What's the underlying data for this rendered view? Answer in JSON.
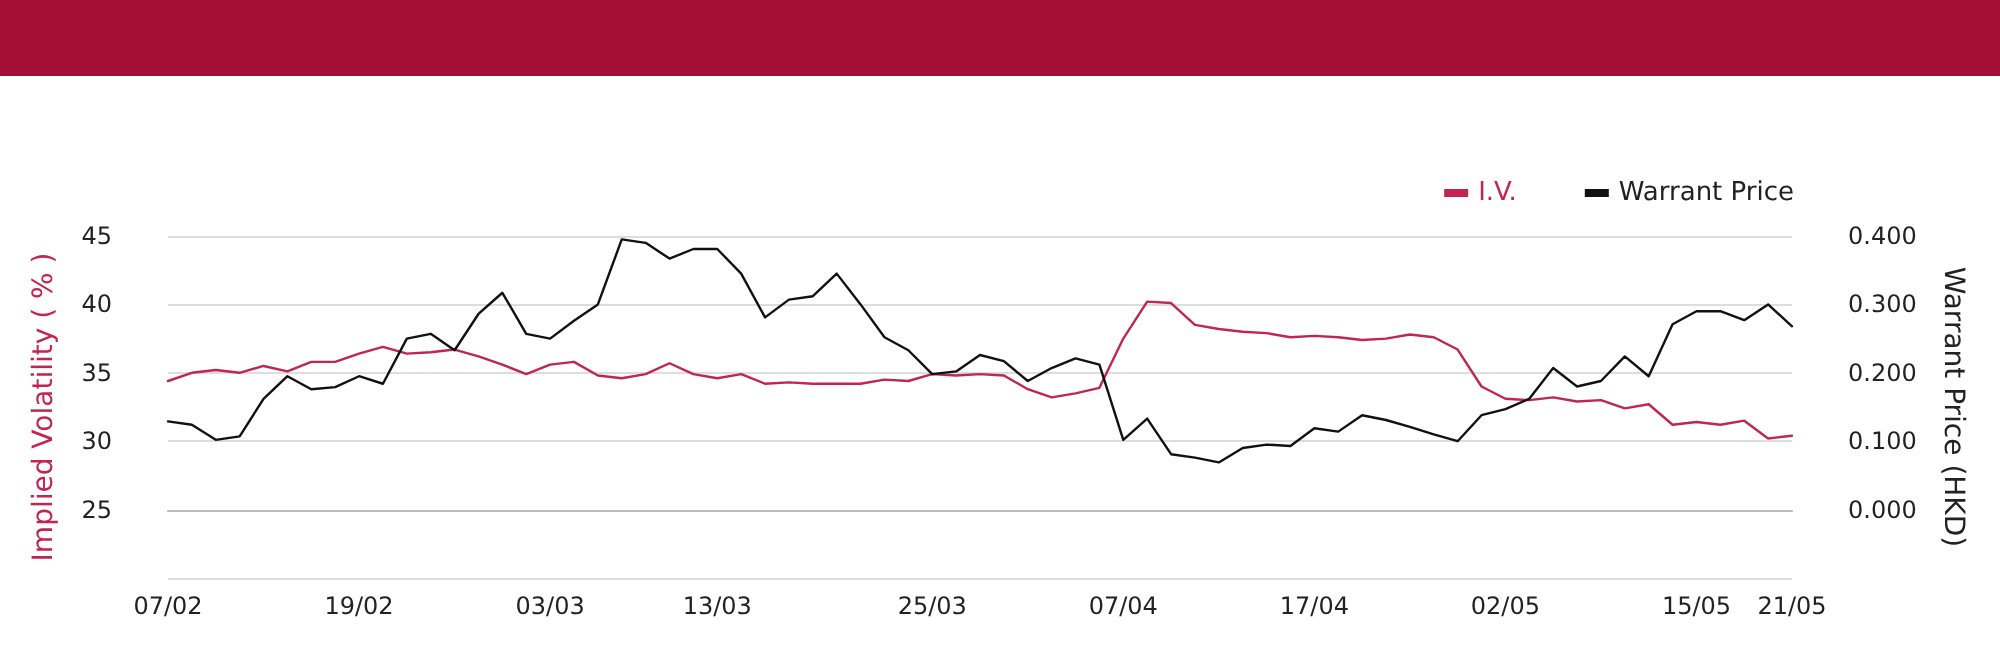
{
  "chart_data": {
    "type": "line",
    "ylabel": "Implied Volatility ( % )",
    "y2label": "Warrant Price (HKD)",
    "categories": [
      "07/02",
      null,
      null,
      null,
      null,
      null,
      null,
      null,
      "19/02",
      null,
      null,
      null,
      null,
      null,
      null,
      null,
      "03/03",
      null,
      null,
      null,
      null,
      null,
      null,
      "13/03",
      null,
      null,
      null,
      null,
      null,
      null,
      null,
      null,
      "25/03",
      null,
      null,
      null,
      null,
      null,
      null,
      null,
      "07/04",
      null,
      null,
      null,
      null,
      null,
      null,
      null,
      "17/04",
      null,
      null,
      null,
      null,
      null,
      null,
      null,
      "02/05",
      null,
      null,
      null,
      null,
      null,
      null,
      null,
      "15/05",
      null,
      null,
      null,
      "21/05"
    ],
    "series": [
      {
        "name": "I.V.",
        "color": "#c0264f",
        "values": [
          34.4,
          35.0,
          35.2,
          35.0,
          35.5,
          35.1,
          35.8,
          35.8,
          36.4,
          36.9,
          36.4,
          36.5,
          36.7,
          36.2,
          35.6,
          34.9,
          35.6,
          35.8,
          34.8,
          34.6,
          34.9,
          35.7,
          34.9,
          34.6,
          34.9,
          34.2,
          34.3,
          34.2,
          34.2,
          34.2,
          34.5,
          34.4,
          34.9,
          34.8,
          34.9,
          34.8,
          33.8,
          33.2,
          33.5,
          33.9,
          37.5,
          40.2,
          40.1,
          38.5,
          38.2,
          38.0,
          37.9,
          37.6,
          37.7,
          37.6,
          37.4,
          37.5,
          37.8,
          37.6,
          36.7,
          34.0,
          33.1,
          33.0,
          33.2,
          32.9,
          33.0,
          32.4,
          32.7,
          31.2,
          31.4,
          31.2,
          31.5,
          30.2,
          30.4
        ]
      },
      {
        "name": "Warrant Price",
        "color": "#111111",
        "axis": "y2",
        "values": [
          0.129,
          0.124,
          0.102,
          0.107,
          0.162,
          0.195,
          0.176,
          0.179,
          0.195,
          0.184,
          0.25,
          0.257,
          0.233,
          0.286,
          0.317,
          0.257,
          0.25,
          0.276,
          0.3,
          0.395,
          0.39,
          0.367,
          0.381,
          0.381,
          0.345,
          0.281,
          0.307,
          0.312,
          0.345,
          0.3,
          0.252,
          0.233,
          0.198,
          0.202,
          0.226,
          0.217,
          0.188,
          0.207,
          0.221,
          0.212,
          0.102,
          0.133,
          0.081,
          0.076,
          0.069,
          0.09,
          0.095,
          0.093,
          0.119,
          0.114,
          0.138,
          0.131,
          0.121,
          0.11,
          0.1,
          0.138,
          0.147,
          0.162,
          0.207,
          0.18,
          0.188,
          0.224,
          0.195,
          0.271,
          0.29,
          0.29,
          0.277,
          0.3,
          0.268
        ]
      }
    ],
    "ylim": [
      20,
      45
    ],
    "yticks": [
      {
        "value": 20,
        "label": null
      },
      25,
      30,
      35,
      40,
      45
    ],
    "y2lim": [
      -0.1,
      0.4
    ],
    "y2ticks": [
      {
        "value": -0.1,
        "label": null
      },
      {
        "value": 0,
        "label": "0.000"
      },
      {
        "value": 0.1,
        "label": "0.100"
      },
      {
        "value": 0.2,
        "label": "0.200"
      },
      {
        "value": 0.3,
        "label": "0.300"
      },
      {
        "value": 0.4,
        "label": "0.400"
      }
    ],
    "grid": "y",
    "legend": "top right",
    "marker": "none",
    "line_style": "solid"
  }
}
